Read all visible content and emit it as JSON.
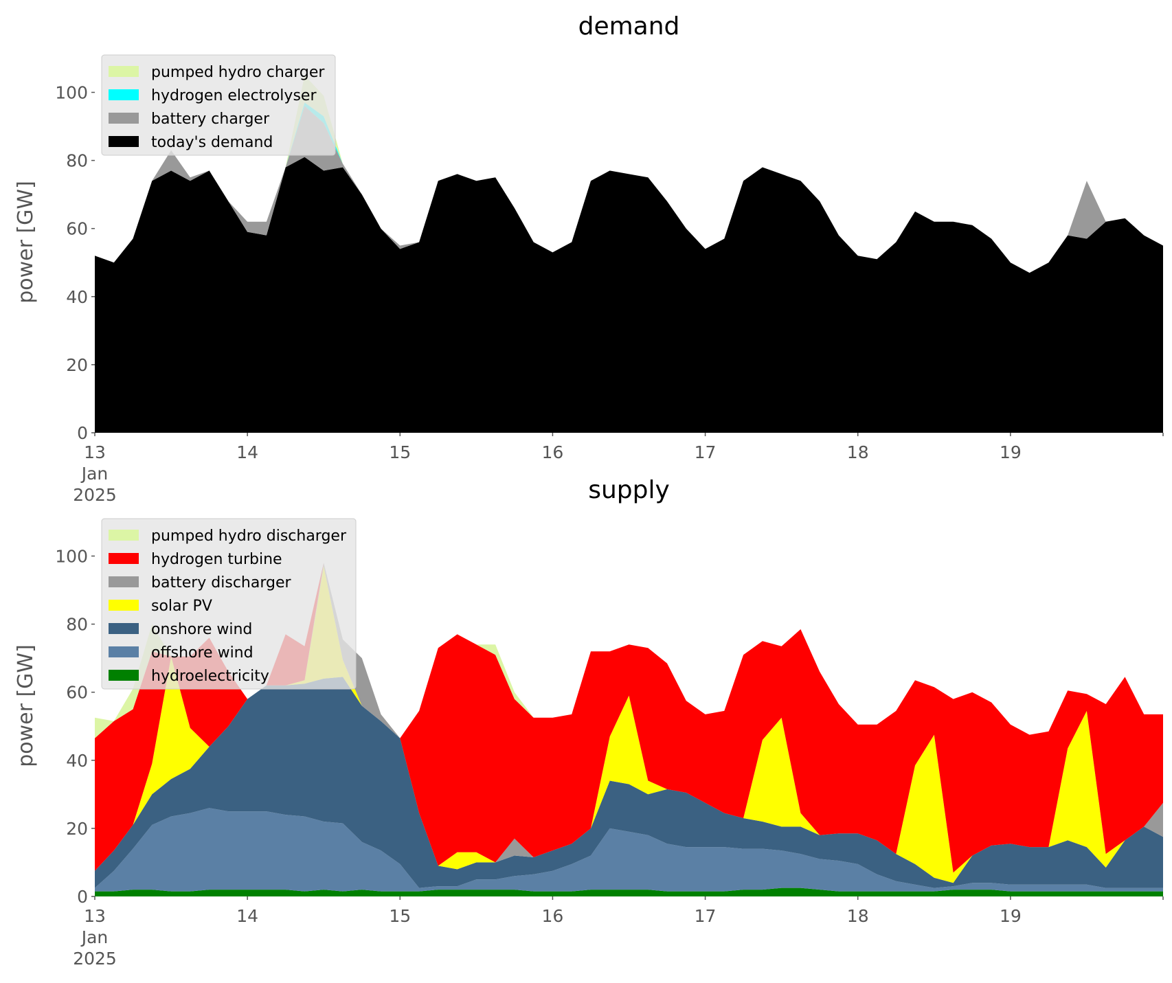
{
  "chart_data": [
    {
      "type": "area",
      "stacked": true,
      "title": "demand",
      "ylabel": "power [GW]",
      "ylim": [
        0,
        112
      ],
      "yticks": [
        "0",
        "20",
        "40",
        "60",
        "80",
        "100"
      ],
      "xlim": [
        "2025-01-13T00:00",
        "2025-01-20T00:00"
      ],
      "xticks": [
        {
          "date": "2025-01-13",
          "label": "13",
          "sub": [
            "Jan",
            "2025"
          ]
        },
        {
          "date": "2025-01-14",
          "label": "14"
        },
        {
          "date": "2025-01-15",
          "label": "15"
        },
        {
          "date": "2025-01-16",
          "label": "16"
        },
        {
          "date": "2025-01-17",
          "label": "17"
        },
        {
          "date": "2025-01-18",
          "label": "18"
        },
        {
          "date": "2025-01-19",
          "label": "19"
        }
      ],
      "grid": false,
      "legend_position": "top-left",
      "x": [
        "2025-01-13T00:00",
        "2025-01-13T03:00",
        "2025-01-13T06:00",
        "2025-01-13T09:00",
        "2025-01-13T12:00",
        "2025-01-13T15:00",
        "2025-01-13T18:00",
        "2025-01-13T21:00",
        "2025-01-14T00:00",
        "2025-01-14T03:00",
        "2025-01-14T06:00",
        "2025-01-14T09:00",
        "2025-01-14T12:00",
        "2025-01-14T15:00",
        "2025-01-14T18:00",
        "2025-01-14T21:00",
        "2025-01-15T00:00",
        "2025-01-15T03:00",
        "2025-01-15T06:00",
        "2025-01-15T09:00",
        "2025-01-15T12:00",
        "2025-01-15T15:00",
        "2025-01-15T18:00",
        "2025-01-15T21:00",
        "2025-01-16T00:00",
        "2025-01-16T03:00",
        "2025-01-16T06:00",
        "2025-01-16T09:00",
        "2025-01-16T12:00",
        "2025-01-16T15:00",
        "2025-01-16T18:00",
        "2025-01-16T21:00",
        "2025-01-17T00:00",
        "2025-01-17T03:00",
        "2025-01-17T06:00",
        "2025-01-17T09:00",
        "2025-01-17T12:00",
        "2025-01-17T15:00",
        "2025-01-17T18:00",
        "2025-01-17T21:00",
        "2025-01-18T00:00",
        "2025-01-18T03:00",
        "2025-01-18T06:00",
        "2025-01-18T09:00",
        "2025-01-18T12:00",
        "2025-01-18T15:00",
        "2025-01-18T18:00",
        "2025-01-18T21:00",
        "2025-01-19T00:00",
        "2025-01-19T03:00",
        "2025-01-19T06:00",
        "2025-01-19T09:00",
        "2025-01-19T12:00",
        "2025-01-19T15:00",
        "2025-01-19T18:00",
        "2025-01-19T21:00",
        "2025-01-20T00:00"
      ],
      "series": [
        {
          "name": "today's demand",
          "color": "#000000",
          "values": [
            52,
            50,
            57,
            74,
            77,
            74,
            77,
            68,
            59,
            58,
            78,
            81,
            77,
            78,
            70,
            60,
            54,
            56,
            74,
            76,
            74,
            75,
            66,
            56,
            53,
            56,
            74,
            77,
            76,
            75,
            68,
            60,
            54,
            57,
            74,
            78,
            76,
            74,
            68,
            58,
            52,
            51,
            56,
            65,
            62,
            62,
            61,
            57,
            50,
            47,
            50,
            58,
            57,
            62,
            63,
            58,
            55
          ]
        },
        {
          "name": "battery charger",
          "color": "#999999",
          "values": [
            0,
            0,
            0,
            0,
            6,
            1,
            0,
            0,
            3,
            4,
            0,
            15,
            14,
            1,
            0,
            0,
            1,
            0,
            0,
            0,
            0,
            0,
            0,
            0,
            0,
            0,
            0,
            0,
            0,
            0,
            0,
            0,
            0,
            0,
            0,
            0,
            0,
            0,
            0,
            0,
            0,
            0,
            0,
            0,
            0,
            0,
            0,
            0,
            0,
            0,
            0,
            0,
            17,
            0,
            0,
            0,
            0
          ]
        },
        {
          "name": "hydrogen electrolyser",
          "color": "#00ffff",
          "values": [
            0,
            0,
            0,
            0,
            0,
            0,
            0,
            0,
            0,
            0,
            0,
            1,
            2,
            0,
            0,
            0,
            0,
            0,
            0,
            0,
            0,
            0,
            0,
            0,
            0,
            0,
            0,
            0,
            0,
            0,
            0,
            0,
            0,
            0,
            0,
            0,
            0,
            0,
            0,
            0,
            0,
            0,
            0,
            0,
            0,
            0,
            0,
            0,
            0,
            0,
            0,
            0,
            0,
            0,
            0,
            0,
            0
          ]
        },
        {
          "name": "pumped hydro charger",
          "color": "#dcf5a5",
          "values": [
            0,
            0,
            0,
            0,
            0,
            0,
            0,
            0,
            0,
            0,
            0,
            8,
            6,
            0,
            0,
            0,
            0,
            0,
            0,
            0,
            0,
            0,
            0,
            0,
            0,
            0,
            0,
            0,
            0,
            0,
            0,
            0,
            0,
            0,
            0,
            0,
            0,
            0,
            0,
            0,
            0,
            0,
            0,
            0,
            0,
            0,
            0,
            0,
            0,
            0,
            0,
            0,
            0,
            0,
            0,
            0,
            0
          ]
        }
      ],
      "legend": [
        "pumped hydro charger",
        "hydrogen electrolyser",
        "battery charger",
        "today's demand"
      ]
    },
    {
      "type": "area",
      "stacked": true,
      "title": "supply",
      "ylabel": "power [GW]",
      "ylim": [
        0,
        112
      ],
      "yticks": [
        "0",
        "20",
        "40",
        "60",
        "80",
        "100"
      ],
      "xlim": [
        "2025-01-13T00:00",
        "2025-01-20T00:00"
      ],
      "xticks": [
        {
          "date": "2025-01-13",
          "label": "13",
          "sub": [
            "Jan",
            "2025"
          ]
        },
        {
          "date": "2025-01-14",
          "label": "14"
        },
        {
          "date": "2025-01-15",
          "label": "15"
        },
        {
          "date": "2025-01-16",
          "label": "16"
        },
        {
          "date": "2025-01-17",
          "label": "17"
        },
        {
          "date": "2025-01-18",
          "label": "18"
        },
        {
          "date": "2025-01-19",
          "label": "19"
        }
      ],
      "grid": false,
      "legend_position": "top-left",
      "x": [
        "2025-01-13T00:00",
        "2025-01-13T03:00",
        "2025-01-13T06:00",
        "2025-01-13T09:00",
        "2025-01-13T12:00",
        "2025-01-13T15:00",
        "2025-01-13T18:00",
        "2025-01-13T21:00",
        "2025-01-14T00:00",
        "2025-01-14T03:00",
        "2025-01-14T06:00",
        "2025-01-14T09:00",
        "2025-01-14T12:00",
        "2025-01-14T15:00",
        "2025-01-14T18:00",
        "2025-01-14T21:00",
        "2025-01-15T00:00",
        "2025-01-15T03:00",
        "2025-01-15T06:00",
        "2025-01-15T09:00",
        "2025-01-15T12:00",
        "2025-01-15T15:00",
        "2025-01-15T18:00",
        "2025-01-15T21:00",
        "2025-01-16T00:00",
        "2025-01-16T03:00",
        "2025-01-16T06:00",
        "2025-01-16T09:00",
        "2025-01-16T12:00",
        "2025-01-16T15:00",
        "2025-01-16T18:00",
        "2025-01-16T21:00",
        "2025-01-17T00:00",
        "2025-01-17T03:00",
        "2025-01-17T06:00",
        "2025-01-17T09:00",
        "2025-01-17T12:00",
        "2025-01-17T15:00",
        "2025-01-17T18:00",
        "2025-01-17T21:00",
        "2025-01-18T00:00",
        "2025-01-18T03:00",
        "2025-01-18T06:00",
        "2025-01-18T09:00",
        "2025-01-18T12:00",
        "2025-01-18T15:00",
        "2025-01-18T18:00",
        "2025-01-18T21:00",
        "2025-01-19T00:00",
        "2025-01-19T03:00",
        "2025-01-19T06:00",
        "2025-01-19T09:00",
        "2025-01-19T12:00",
        "2025-01-19T15:00",
        "2025-01-19T18:00",
        "2025-01-19T21:00",
        "2025-01-20T00:00"
      ],
      "series": [
        {
          "name": "hydroelectricity",
          "color": "#008000",
          "values": [
            1.5,
            1.5,
            2,
            2,
            1.5,
            1.5,
            2,
            2,
            2,
            2,
            2,
            1.5,
            2,
            1.5,
            2,
            1.5,
            1.5,
            1.5,
            2,
            2,
            2,
            2,
            2,
            1.5,
            1.5,
            1.5,
            2,
            2,
            2,
            2,
            1.5,
            1.5,
            1.5,
            1.5,
            2,
            2,
            2.5,
            2.5,
            2,
            1.5,
            1.5,
            1.5,
            1.5,
            1.5,
            1.5,
            2,
            2,
            2,
            1.5,
            1.5,
            1.5,
            1.5,
            1.5,
            1.5,
            1.5,
            1.5,
            1.5
          ]
        },
        {
          "name": "offshore wind",
          "color": "#5b80a5",
          "values": [
            1,
            6,
            12,
            19,
            22,
            23,
            24,
            23,
            23,
            23,
            22,
            22,
            20,
            20,
            14,
            12,
            8,
            1,
            1,
            1,
            3,
            3,
            4,
            5,
            6,
            8,
            10,
            18,
            17,
            16,
            14,
            13,
            13,
            13,
            12,
            12,
            11,
            10,
            9,
            9,
            8,
            5,
            3,
            2,
            1,
            1,
            2,
            2,
            2,
            2,
            2,
            2,
            2,
            1,
            1,
            1,
            1
          ]
        },
        {
          "name": "onshore wind",
          "color": "#3b6182",
          "values": [
            5,
            6,
            7,
            9,
            11,
            13,
            18,
            25,
            33,
            37,
            38,
            39,
            42,
            43,
            40,
            38,
            37,
            22,
            6,
            5,
            5,
            5,
            6,
            5,
            6,
            6,
            8,
            14,
            14,
            12,
            16,
            16,
            13,
            10,
            9,
            8,
            7,
            8,
            7,
            8,
            9,
            10,
            8,
            6,
            3,
            1,
            8,
            11,
            12,
            11,
            11,
            13,
            11,
            6,
            14,
            18,
            15
          ]
        },
        {
          "name": "solar PV",
          "color": "#ffff00",
          "values": [
            0,
            0,
            0,
            9,
            36,
            12,
            0,
            0,
            0,
            0,
            0,
            1,
            33,
            5,
            0,
            0,
            0,
            0,
            0,
            5,
            3,
            0,
            0,
            0,
            0,
            0,
            0,
            13,
            26,
            4,
            0,
            0,
            0,
            0,
            0,
            24,
            32,
            4,
            0,
            0,
            0,
            0,
            0,
            29,
            42,
            3,
            0,
            0,
            0,
            0,
            0,
            27,
            40,
            4,
            0,
            0,
            0
          ]
        },
        {
          "name": "battery discharger",
          "color": "#999999",
          "values": [
            0,
            0,
            0,
            0,
            0,
            0,
            0,
            0,
            0,
            0,
            0,
            0,
            1,
            6,
            14,
            2,
            0,
            0,
            0,
            0,
            0,
            0,
            5,
            0,
            0,
            0,
            0,
            0,
            0,
            0,
            0,
            0,
            0,
            0,
            0,
            0,
            0,
            0,
            0,
            0,
            0,
            0,
            0,
            0,
            0,
            0,
            0,
            0,
            0,
            0,
            0,
            0,
            0,
            0,
            0,
            0,
            10
          ]
        },
        {
          "name": "hydrogen turbine",
          "color": "#ff0000",
          "values": [
            39,
            38,
            34,
            33,
            0,
            21,
            32,
            16,
            0,
            0,
            15,
            10,
            0,
            0,
            0,
            0,
            0,
            30,
            64,
            64,
            61,
            61,
            41,
            41,
            39,
            38,
            52,
            25,
            15,
            39,
            37,
            27,
            26,
            30,
            48,
            29,
            21,
            54,
            48,
            38,
            32,
            34,
            42,
            25,
            14,
            51,
            48,
            42,
            35,
            33,
            34,
            17,
            5,
            44,
            48,
            33,
            26
          ]
        },
        {
          "name": "pumped hydro discharger",
          "color": "#dcf5a5",
          "values": [
            6,
            0,
            6,
            8,
            0,
            0,
            0,
            0,
            0,
            0,
            0,
            0,
            0,
            0,
            0,
            0,
            0,
            0,
            0,
            0,
            0,
            3,
            2,
            0,
            0,
            0,
            0,
            0,
            0,
            0,
            0,
            0,
            0,
            0,
            0,
            0,
            0,
            0,
            0,
            0,
            0,
            0,
            0,
            0,
            0,
            0,
            0,
            0,
            0,
            0,
            0,
            0,
            0,
            0,
            0,
            0,
            0
          ]
        }
      ],
      "legend": [
        "pumped hydro discharger",
        "hydrogen turbine",
        "battery discharger",
        "solar PV",
        "onshore wind",
        "offshore wind",
        "hydroelectricity"
      ]
    }
  ]
}
